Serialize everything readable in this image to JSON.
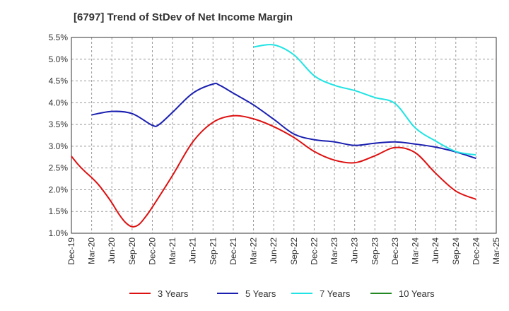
{
  "chart_data": {
    "type": "line",
    "title": "[6797]  Trend of StDev of Net Income Margin",
    "xlabel": "",
    "ylabel": "",
    "x_ticks": [
      "Dec-19",
      "Mar-20",
      "Jun-20",
      "Sep-20",
      "Dec-20",
      "Mar-21",
      "Jun-21",
      "Sep-21",
      "Dec-21",
      "Mar-22",
      "Jun-22",
      "Sep-22",
      "Dec-22",
      "Mar-23",
      "Jun-23",
      "Sep-23",
      "Dec-23",
      "Mar-24",
      "Jun-24",
      "Sep-24",
      "Dec-24",
      "Mar-25"
    ],
    "y_ticks": [
      "1.0%",
      "1.5%",
      "2.0%",
      "2.5%",
      "3.0%",
      "3.5%",
      "4.0%",
      "4.5%",
      "5.0%",
      "5.5%"
    ],
    "ylim": [
      1.0,
      5.5
    ],
    "grid": "dashed",
    "legend_position": "bottom",
    "series": [
      {
        "name": "3 Years",
        "color": "#dd1111",
        "x": [
          "Dec-19",
          "Jan-20",
          "Feb-20",
          "Mar-20",
          "Apr-20",
          "May-20",
          "Jun-20",
          "Jul-20",
          "Aug-20",
          "Sep-20",
          "Oct-20",
          "Nov-20",
          "Dec-20",
          "Mar-21",
          "Jun-21",
          "Sep-21",
          "Dec-21",
          "Mar-22",
          "Jun-22",
          "Sep-22",
          "Dec-22",
          "Mar-23",
          "Jun-23",
          "Sep-23",
          "Dec-23",
          "Mar-24",
          "Jun-24",
          "Sep-24",
          "Dec-24"
        ],
        "values": [
          2.77,
          2.58,
          2.42,
          2.28,
          2.12,
          1.92,
          1.7,
          1.45,
          1.25,
          1.15,
          1.2,
          1.38,
          1.6,
          2.33,
          3.1,
          3.55,
          3.7,
          3.63,
          3.45,
          3.2,
          2.88,
          2.68,
          2.62,
          2.78,
          2.97,
          2.85,
          2.38,
          1.97,
          1.78
        ]
      },
      {
        "name": "5 Years",
        "color": "#1a1fb0",
        "x": [
          "Mar-20",
          "Jun-20",
          "Sep-20",
          "Dec-20",
          "Jan-21",
          "Mar-21",
          "Jun-21",
          "Sep-21",
          "Oct-21",
          "Dec-21",
          "Mar-22",
          "Jun-22",
          "Sep-22",
          "Dec-22",
          "Mar-23",
          "Jun-23",
          "Sep-23",
          "Dec-23",
          "Mar-24",
          "Jun-24",
          "Sep-24",
          "Dec-24"
        ],
        "values": [
          3.72,
          3.8,
          3.75,
          3.48,
          3.5,
          3.78,
          4.22,
          4.43,
          4.4,
          4.22,
          3.95,
          3.62,
          3.28,
          3.15,
          3.1,
          3.02,
          3.07,
          3.1,
          3.05,
          2.98,
          2.87,
          2.72
        ]
      },
      {
        "name": "7 Years",
        "color": "#22e3e3",
        "x": [
          "Mar-22",
          "Jun-22",
          "Sep-22",
          "Dec-22",
          "Mar-23",
          "Jun-23",
          "Sep-23",
          "Dec-23",
          "Mar-24",
          "Jun-24",
          "Sep-24",
          "Dec-24"
        ],
        "values": [
          5.28,
          5.33,
          5.1,
          4.62,
          4.4,
          4.28,
          4.12,
          3.98,
          3.42,
          3.12,
          2.88,
          2.8
        ]
      },
      {
        "name": "10 Years",
        "color": "#228822",
        "x": [],
        "values": []
      }
    ]
  }
}
